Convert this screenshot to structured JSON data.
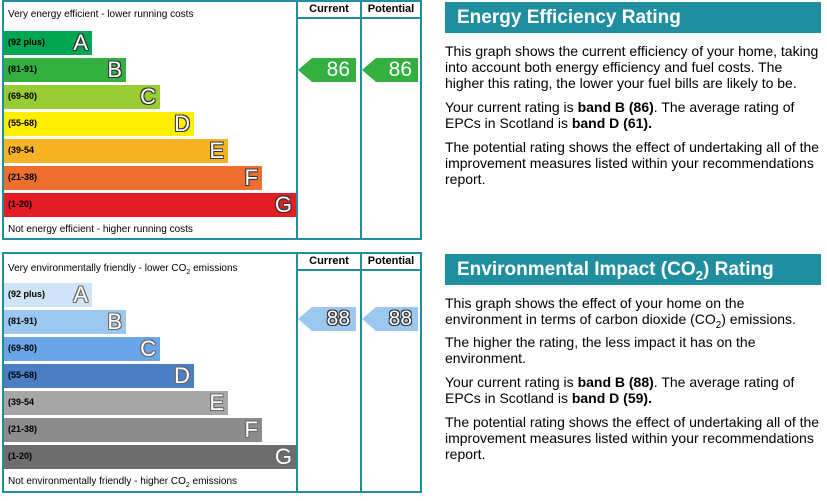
{
  "energy": {
    "top_caption": "Very energy efficient - lower running costs",
    "bottom_caption": "Not energy efficient - higher running costs",
    "col_current": "Current",
    "col_potential": "Potential",
    "bands": [
      {
        "range": "(92 plus)",
        "letter": "A",
        "color": "#00a651"
      },
      {
        "range": "(81-91)",
        "letter": "B",
        "color": "#33b040"
      },
      {
        "range": "(69-80)",
        "letter": "C",
        "color": "#99cc33"
      },
      {
        "range": "(55-68)",
        "letter": "D",
        "color": "#ffee00"
      },
      {
        "range": "(39-54",
        "letter": "E",
        "color": "#f5b324"
      },
      {
        "range": "(21-38)",
        "letter": "F",
        "color": "#ee6f2d"
      },
      {
        "range": "(1-20)",
        "letter": "G",
        "color": "#e31d23"
      }
    ],
    "current_value": "86",
    "potential_value": "86",
    "arrow_color": "#33b040"
  },
  "environment": {
    "top_caption_prefix": "Very environmentally friendly - lower CO",
    "top_caption_sub": "2",
    "top_caption_suffix": " emissions",
    "bottom_caption_prefix": "Not environmentally friendly - higher CO",
    "bottom_caption_sub": "2",
    "bottom_caption_suffix": " emissions",
    "col_current": "Current",
    "col_potential": "Potential",
    "bands": [
      {
        "range": "(92 plus)",
        "letter": "A",
        "color": "#cfe4f7"
      },
      {
        "range": "(81-91)",
        "letter": "B",
        "color": "#9cc8f0"
      },
      {
        "range": "(69-80)",
        "letter": "C",
        "color": "#6aa5e8"
      },
      {
        "range": "(55-68)",
        "letter": "D",
        "color": "#4a7fc4"
      },
      {
        "range": "(39-54",
        "letter": "E",
        "color": "#a6a6a6"
      },
      {
        "range": "(21-38)",
        "letter": "F",
        "color": "#8c8c8c"
      },
      {
        "range": "(1-20)",
        "letter": "G",
        "color": "#6d6d6d"
      }
    ],
    "current_value": "88",
    "potential_value": "88",
    "arrow_color": "#9cc8f0"
  },
  "eer_panel": {
    "title": "Energy Efficiency Rating",
    "p1": "This graph shows the current efficiency of your home, taking into account both energy efficiency and fuel costs. The higher this rating, the lower your fuel bills are likely to be.",
    "p2_prefix": "Your current rating is ",
    "p2_band": "band B (86)",
    "p2_middle": ". The average rating of EPCs in Scotland is ",
    "p2_avg": "band D (61).",
    "p3": "The potential rating shows the effect of undertaking all of the improvement measures listed within your recommendations report."
  },
  "eir_panel": {
    "title_prefix": "Environmental Impact (CO",
    "title_sub": "2",
    "title_suffix": ") Rating",
    "p1_prefix": "This graph shows the effect of your home on the environment in terms of carbon dioxide (CO",
    "p1_sub": "2",
    "p1_suffix": ") emissions. The higher the rating, the less impact it has on the environment.",
    "p2_prefix": "Your current rating is ",
    "p2_band": "band B (88)",
    "p2_middle": ". The average rating of EPCs in Scotland is ",
    "p2_avg": "band D (59).",
    "p3": "The potential rating shows the effect of undertaking all of the improvement measures listed within your recommendations report."
  }
}
